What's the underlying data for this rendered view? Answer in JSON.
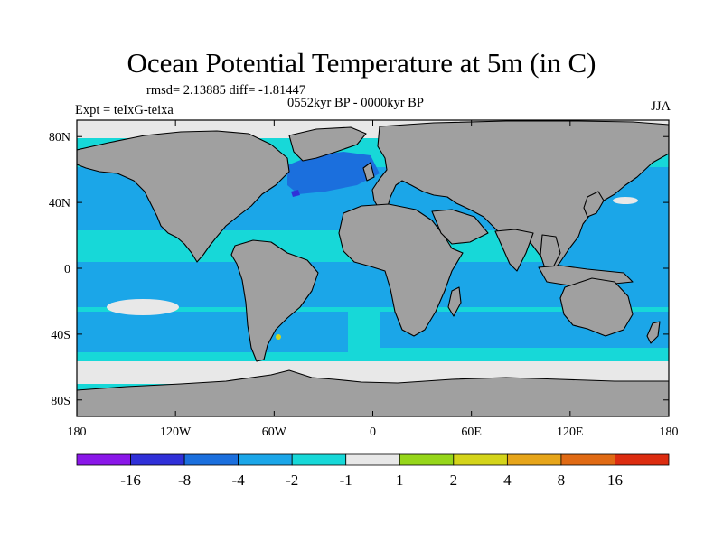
{
  "title": "Ocean Potential Temperature at 5m (in C)",
  "stats": "rmsd= 2.13885 diff= -1.81447",
  "period": "0552kyr BP - 0000kyr BP",
  "experiment": "Expt = teIxG-teixa",
  "season": "JJA",
  "map": {
    "projection": "cylindrical equidistant",
    "lon_range": [
      -180,
      180
    ],
    "lat_range": [
      -90,
      90
    ],
    "lon_ticks": [
      {
        "lon": -180,
        "label": "180"
      },
      {
        "lon": -120,
        "label": "120W"
      },
      {
        "lon": -60,
        "label": "60W"
      },
      {
        "lon": 0,
        "label": "0"
      },
      {
        "lon": 60,
        "label": "60E"
      },
      {
        "lon": 120,
        "label": "120E"
      },
      {
        "lon": 180,
        "label": "180"
      }
    ],
    "lat_ticks": [
      {
        "lat": 80,
        "label": "80N"
      },
      {
        "lat": 40,
        "label": "40N"
      },
      {
        "lat": 0,
        "label": "0"
      },
      {
        "lat": -40,
        "label": "40S"
      },
      {
        "lat": -80,
        "label": "80S"
      }
    ],
    "land_color": "#a0a0a0",
    "coast_color": "#000000"
  },
  "colorbar": {
    "colors": [
      "#8a17e8",
      "#3030d8",
      "#1b6fdd",
      "#1ba6e8",
      "#17d8d8",
      "#e8e8e8",
      "#96d61a",
      "#d4d41a",
      "#e6a51a",
      "#e06a14",
      "#dc2c10"
    ],
    "labels": [
      "-16",
      "-8",
      "-4",
      "-2",
      "-1",
      "1",
      "2",
      "4",
      "8",
      "16"
    ]
  }
}
